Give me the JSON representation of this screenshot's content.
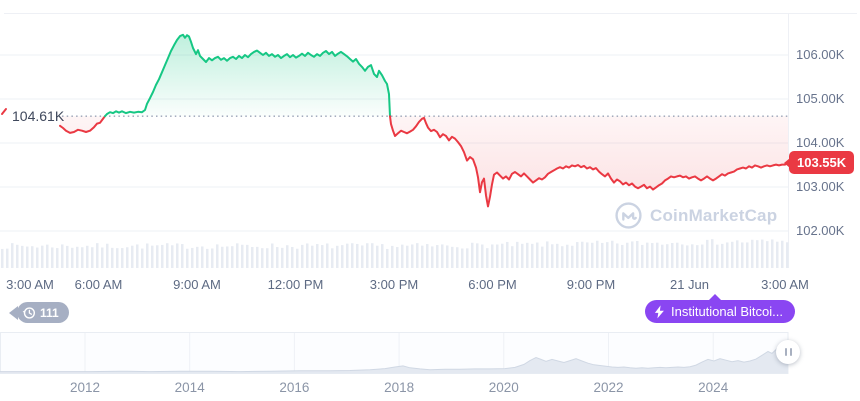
{
  "colors": {
    "green": "#16c784",
    "red": "#ea3943",
    "purple": "#8a46f2",
    "badge_gray": "#a6afc3",
    "grid": "#eef0f5",
    "dotted_baseline": "#97a1b5",
    "volume_bar": "#e7ebf2",
    "mini_area_fill": "#e4e9f1",
    "mini_area_stroke": "#d0d8e4",
    "watermark": "#cbd3e2"
  },
  "price_chart": {
    "baseline_label": "104.61K",
    "current_price_label": "103.55K",
    "y_axis_labels": [
      "106.00K",
      "105.00K",
      "104.00K",
      "103.00K",
      "102.00K"
    ],
    "time_labels": [
      "3:00 AM",
      "6:00 AM",
      "9:00 AM",
      "12:00 PM",
      "3:00 PM",
      "6:00 PM",
      "9:00 PM",
      "21 Jun",
      "3:00 AM"
    ],
    "watermark_text": "CoinMarketCap"
  },
  "timeline": {
    "year_labels": [
      "2012",
      "2014",
      "2016",
      "2018",
      "2020",
      "2022",
      "2024"
    ]
  },
  "badges": {
    "history_count": "111",
    "news_label": "Institutional Bitcoi..."
  },
  "chart_data": [
    {
      "type": "line",
      "unit": "K USD",
      "baseline": 104.61,
      "current": 103.55,
      "ylim": [
        101.8,
        107.1
      ],
      "y_gridlines": [
        106,
        105,
        104,
        103,
        102
      ],
      "x_tick_labels": [
        "3:00 AM",
        "6:00 AM",
        "9:00 AM",
        "12:00 PM",
        "3:00 PM",
        "6:00 PM",
        "9:00 PM",
        "21 Jun",
        "3:00 AM"
      ],
      "legend": "price above baseline shaded green, below baseline shaded red",
      "volume": {
        "count": 158,
        "step": 5,
        "width": 2.5,
        "base_height": 19,
        "variance": 6,
        "ramp_after_x": 430,
        "ramp_height": 5
      },
      "points": [
        [
          60,
          104.39
        ],
        [
          63,
          104.34
        ],
        [
          66,
          104.28
        ],
        [
          70,
          104.23
        ],
        [
          74,
          104.25
        ],
        [
          78,
          104.3
        ],
        [
          82,
          104.28
        ],
        [
          86,
          104.25
        ],
        [
          90,
          104.28
        ],
        [
          94,
          104.36
        ],
        [
          97,
          104.44
        ],
        [
          100,
          104.46
        ],
        [
          102,
          104.52
        ],
        [
          105,
          104.61
        ],
        [
          107,
          104.66
        ],
        [
          110,
          104.7
        ],
        [
          113,
          104.68
        ],
        [
          116,
          104.72
        ],
        [
          119,
          104.69
        ],
        [
          122,
          104.72
        ],
        [
          126,
          104.68
        ],
        [
          130,
          104.71
        ],
        [
          134,
          104.69
        ],
        [
          138,
          104.71
        ],
        [
          142,
          104.7
        ],
        [
          145,
          104.75
        ],
        [
          147,
          104.89
        ],
        [
          150,
          105.02
        ],
        [
          153,
          105.16
        ],
        [
          156,
          105.32
        ],
        [
          159,
          105.45
        ],
        [
          162,
          105.61
        ],
        [
          165,
          105.77
        ],
        [
          168,
          105.93
        ],
        [
          171,
          106.09
        ],
        [
          174,
          106.22
        ],
        [
          177,
          106.34
        ],
        [
          180,
          106.43
        ],
        [
          183,
          106.46
        ],
        [
          185,
          106.39
        ],
        [
          187,
          106.45
        ],
        [
          189,
          106.42
        ],
        [
          191,
          106.3
        ],
        [
          193,
          106.16
        ],
        [
          196,
          106.02
        ],
        [
          198,
          106.11
        ],
        [
          200,
          105.98
        ],
        [
          203,
          105.91
        ],
        [
          206,
          105.84
        ],
        [
          209,
          105.93
        ],
        [
          212,
          105.88
        ],
        [
          215,
          105.93
        ],
        [
          218,
          105.96
        ],
        [
          221,
          105.89
        ],
        [
          224,
          105.93
        ],
        [
          227,
          105.87
        ],
        [
          230,
          105.93
        ],
        [
          233,
          105.96
        ],
        [
          236,
          105.91
        ],
        [
          239,
          105.98
        ],
        [
          242,
          105.93
        ],
        [
          245,
          106.0
        ],
        [
          248,
          105.95
        ],
        [
          251,
          106.02
        ],
        [
          254,
          106.07
        ],
        [
          257,
          106.1
        ],
        [
          260,
          106.05
        ],
        [
          263,
          106.0
        ],
        [
          266,
          106.05
        ],
        [
          269,
          105.98
        ],
        [
          272,
          106.02
        ],
        [
          275,
          105.96
        ],
        [
          278,
          106.0
        ],
        [
          281,
          105.93
        ],
        [
          284,
          105.98
        ],
        [
          287,
          106.02
        ],
        [
          290,
          105.95
        ],
        [
          293,
          106.0
        ],
        [
          296,
          105.94
        ],
        [
          299,
          105.98
        ],
        [
          302,
          106.03
        ],
        [
          305,
          105.98
        ],
        [
          308,
          106.05
        ],
        [
          311,
          106.0
        ],
        [
          314,
          105.96
        ],
        [
          317,
          106.02
        ],
        [
          320,
          105.98
        ],
        [
          323,
          106.05
        ],
        [
          326,
          106.09
        ],
        [
          329,
          106.02
        ],
        [
          332,
          106.07
        ],
        [
          335,
          105.98
        ],
        [
          338,
          106.03
        ],
        [
          341,
          106.07
        ],
        [
          344,
          106.02
        ],
        [
          347,
          105.97
        ],
        [
          350,
          105.91
        ],
        [
          353,
          105.85
        ],
        [
          356,
          105.91
        ],
        [
          359,
          105.8
        ],
        [
          362,
          105.73
        ],
        [
          365,
          105.64
        ],
        [
          368,
          105.73
        ],
        [
          371,
          105.77
        ],
        [
          374,
          105.57
        ],
        [
          377,
          105.5
        ],
        [
          379,
          105.64
        ],
        [
          382,
          105.54
        ],
        [
          385,
          105.41
        ],
        [
          387,
          105.34
        ],
        [
          389,
          105.11
        ],
        [
          390,
          104.61
        ],
        [
          391,
          104.43
        ],
        [
          393,
          104.28
        ],
        [
          395,
          104.16
        ],
        [
          398,
          104.22
        ],
        [
          401,
          104.28
        ],
        [
          404,
          104.25
        ],
        [
          407,
          104.22
        ],
        [
          410,
          104.26
        ],
        [
          413,
          104.3
        ],
        [
          416,
          104.38
        ],
        [
          419,
          104.48
        ],
        [
          422,
          104.55
        ],
        [
          424,
          104.57
        ],
        [
          426,
          104.45
        ],
        [
          428,
          104.35
        ],
        [
          431,
          104.27
        ],
        [
          434,
          104.3
        ],
        [
          437,
          104.25
        ],
        [
          440,
          104.13
        ],
        [
          443,
          104.2
        ],
        [
          446,
          104.16
        ],
        [
          449,
          104.06
        ],
        [
          452,
          104.14
        ],
        [
          455,
          104.1
        ],
        [
          458,
          104.02
        ],
        [
          461,
          103.93
        ],
        [
          464,
          103.79
        ],
        [
          467,
          103.6
        ],
        [
          470,
          103.68
        ],
        [
          473,
          103.63
        ],
        [
          476,
          103.44
        ],
        [
          478,
          103.22
        ],
        [
          480,
          102.88
        ],
        [
          482,
          103.11
        ],
        [
          484,
          103.19
        ],
        [
          486,
          102.81
        ],
        [
          488,
          102.56
        ],
        [
          490,
          102.78
        ],
        [
          492,
          103.06
        ],
        [
          494,
          103.28
        ],
        [
          497,
          103.33
        ],
        [
          500,
          103.26
        ],
        [
          503,
          103.19
        ],
        [
          506,
          103.24
        ],
        [
          509,
          103.17
        ],
        [
          512,
          103.3
        ],
        [
          515,
          103.34
        ],
        [
          518,
          103.29
        ],
        [
          521,
          103.24
        ],
        [
          524,
          103.31
        ],
        [
          527,
          103.24
        ],
        [
          530,
          103.17
        ],
        [
          533,
          103.1
        ],
        [
          536,
          103.15
        ],
        [
          539,
          103.2
        ],
        [
          542,
          103.17
        ],
        [
          545,
          103.22
        ],
        [
          548,
          103.3
        ],
        [
          551,
          103.34
        ],
        [
          554,
          103.38
        ],
        [
          557,
          103.42
        ],
        [
          560,
          103.45
        ],
        [
          563,
          103.42
        ],
        [
          566,
          103.47
        ],
        [
          569,
          103.44
        ],
        [
          572,
          103.49
        ],
        [
          575,
          103.47
        ],
        [
          578,
          103.5
        ],
        [
          581,
          103.45
        ],
        [
          584,
          103.48
        ],
        [
          587,
          103.42
        ],
        [
          590,
          103.45
        ],
        [
          593,
          103.4
        ],
        [
          596,
          103.43
        ],
        [
          599,
          103.35
        ],
        [
          602,
          103.29
        ],
        [
          605,
          103.24
        ],
        [
          608,
          103.31
        ],
        [
          611,
          103.19
        ],
        [
          614,
          103.1
        ],
        [
          617,
          103.17
        ],
        [
          620,
          103.13
        ],
        [
          623,
          103.06
        ],
        [
          626,
          103.1
        ],
        [
          629,
          103.04
        ],
        [
          632,
          103.08
        ],
        [
          635,
          103.01
        ],
        [
          638,
          102.97
        ],
        [
          641,
          103.01
        ],
        [
          644,
          103.05
        ],
        [
          647,
          102.97
        ],
        [
          650,
          103.01
        ],
        [
          653,
          102.94
        ],
        [
          656,
          102.99
        ],
        [
          659,
          103.04
        ],
        [
          662,
          103.08
        ],
        [
          665,
          103.15
        ],
        [
          668,
          103.19
        ],
        [
          671,
          103.24
        ],
        [
          674,
          103.22
        ],
        [
          677,
          103.24
        ],
        [
          680,
          103.26
        ],
        [
          683,
          103.22
        ],
        [
          686,
          103.24
        ],
        [
          689,
          103.19
        ],
        [
          692,
          103.22
        ],
        [
          695,
          103.24
        ],
        [
          698,
          103.19
        ],
        [
          701,
          103.15
        ],
        [
          704,
          103.19
        ],
        [
          707,
          103.24
        ],
        [
          710,
          103.19
        ],
        [
          713,
          103.15
        ],
        [
          716,
          103.19
        ],
        [
          719,
          103.24
        ],
        [
          722,
          103.29
        ],
        [
          725,
          103.26
        ],
        [
          728,
          103.31
        ],
        [
          731,
          103.33
        ],
        [
          734,
          103.35
        ],
        [
          737,
          103.4
        ],
        [
          740,
          103.42
        ],
        [
          743,
          103.44
        ],
        [
          746,
          103.42
        ],
        [
          749,
          103.47
        ],
        [
          752,
          103.44
        ],
        [
          755,
          103.49
        ],
        [
          758,
          103.47
        ],
        [
          761,
          103.44
        ],
        [
          764,
          103.47
        ],
        [
          767,
          103.49
        ],
        [
          770,
          103.47
        ],
        [
          773,
          103.49
        ],
        [
          776,
          103.51
        ],
        [
          779,
          103.49
        ],
        [
          782,
          103.51
        ],
        [
          785,
          103.51
        ],
        [
          788,
          103.55
        ]
      ]
    },
    {
      "type": "area",
      "x_tick_labels": [
        "2012",
        "2014",
        "2016",
        "2018",
        "2020",
        "2022",
        "2024"
      ],
      "points": [
        [
          0,
          0.05
        ],
        [
          30,
          0.05
        ],
        [
          60,
          0.05
        ],
        [
          90,
          0.05
        ],
        [
          120,
          0.06
        ],
        [
          150,
          0.05
        ],
        [
          180,
          0.06
        ],
        [
          210,
          0.06
        ],
        [
          240,
          0.05
        ],
        [
          270,
          0.06
        ],
        [
          300,
          0.07
        ],
        [
          330,
          0.07
        ],
        [
          350,
          0.08
        ],
        [
          370,
          0.1
        ],
        [
          385,
          0.13
        ],
        [
          395,
          0.17
        ],
        [
          403,
          0.2
        ],
        [
          410,
          0.15
        ],
        [
          420,
          0.12
        ],
        [
          430,
          0.1
        ],
        [
          445,
          0.11
        ],
        [
          460,
          0.11
        ],
        [
          475,
          0.12
        ],
        [
          490,
          0.12
        ],
        [
          505,
          0.13
        ],
        [
          515,
          0.16
        ],
        [
          524,
          0.24
        ],
        [
          530,
          0.34
        ],
        [
          536,
          0.42
        ],
        [
          541,
          0.37
        ],
        [
          546,
          0.32
        ],
        [
          552,
          0.37
        ],
        [
          558,
          0.33
        ],
        [
          564,
          0.29
        ],
        [
          570,
          0.34
        ],
        [
          576,
          0.39
        ],
        [
          582,
          0.33
        ],
        [
          588,
          0.27
        ],
        [
          594,
          0.23
        ],
        [
          600,
          0.21
        ],
        [
          606,
          0.19
        ],
        [
          612,
          0.17
        ],
        [
          618,
          0.16
        ],
        [
          624,
          0.17
        ],
        [
          630,
          0.15
        ],
        [
          636,
          0.14
        ],
        [
          642,
          0.15
        ],
        [
          648,
          0.14
        ],
        [
          654,
          0.15
        ],
        [
          660,
          0.16
        ],
        [
          666,
          0.15
        ],
        [
          672,
          0.16
        ],
        [
          678,
          0.17
        ],
        [
          684,
          0.16
        ],
        [
          690,
          0.18
        ],
        [
          696,
          0.22
        ],
        [
          702,
          0.3
        ],
        [
          708,
          0.37
        ],
        [
          714,
          0.33
        ],
        [
          720,
          0.39
        ],
        [
          726,
          0.35
        ],
        [
          732,
          0.31
        ],
        [
          738,
          0.34
        ],
        [
          744,
          0.3
        ],
        [
          750,
          0.33
        ],
        [
          756,
          0.38
        ],
        [
          762,
          0.48
        ],
        [
          768,
          0.58
        ],
        [
          772,
          0.53
        ],
        [
          776,
          0.63
        ],
        [
          780,
          0.75
        ],
        [
          783,
          0.68
        ],
        [
          786,
          0.8
        ],
        [
          788,
          0.86
        ]
      ]
    }
  ]
}
